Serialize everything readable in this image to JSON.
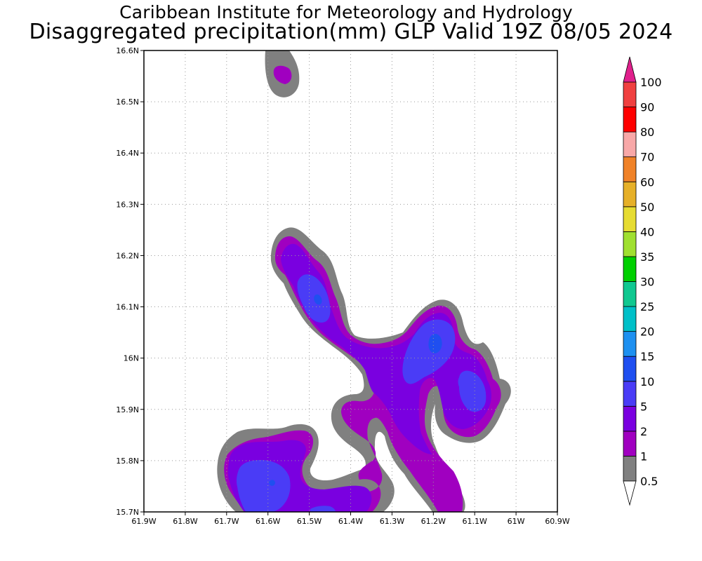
{
  "title": {
    "line1": "Caribbean Institute for Meteorology and Hydrology",
    "line2": "Disaggregated precipitation(mm) GLP Valid 19Z 08/05 2024"
  },
  "axes": {
    "x_ticks": [
      "61.9W",
      "61.8W",
      "61.7W",
      "61.6W",
      "61.5W",
      "61.4W",
      "61.3W",
      "61.2W",
      "61.1W",
      "61W",
      "60.9W"
    ],
    "y_ticks": [
      "15.7N",
      "15.8N",
      "15.9N",
      "16N",
      "16.1N",
      "16.2N",
      "16.3N",
      "16.4N",
      "16.5N",
      "16.6N"
    ],
    "x_range": [
      -61.9,
      -60.9
    ],
    "y_range": [
      15.7,
      16.6
    ],
    "grid": true
  },
  "colorbar": {
    "levels": [
      "0.5",
      "1",
      "2",
      "5",
      "10",
      "15",
      "20",
      "25",
      "30",
      "35",
      "40",
      "50",
      "60",
      "70",
      "80",
      "90",
      "100"
    ],
    "colors": [
      "#808080",
      "#a000c0",
      "#7a00e0",
      "#4a3cf6",
      "#1f4ff0",
      "#1e90f0",
      "#00c0c8",
      "#10c890",
      "#00d000",
      "#a0e030",
      "#e6dc32",
      "#e6b028",
      "#f08228",
      "#f8a8a8",
      "#ff0000",
      "#f04040",
      "#e0208c"
    ],
    "under_color": "#ffffff",
    "over_color": "#e0208c"
  },
  "legend_colors": {
    "gray": "#808080",
    "magenta": "#a000c0",
    "purple": "#7a00e0",
    "blue": "#4a3cf6",
    "bright_blue": "#1f4ff0"
  }
}
